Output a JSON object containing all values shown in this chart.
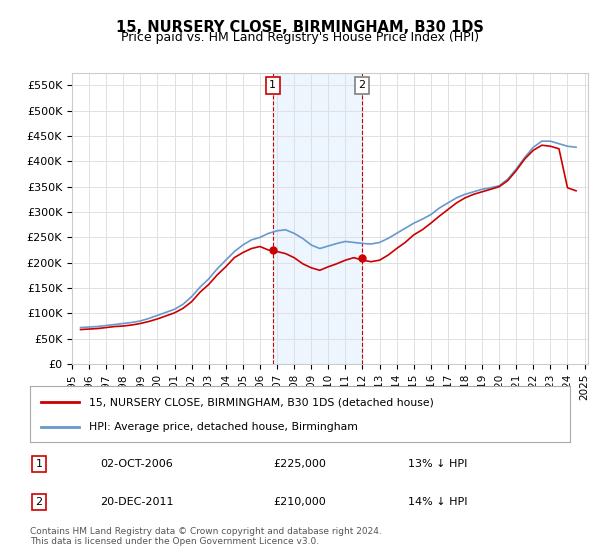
{
  "title": "15, NURSERY CLOSE, BIRMINGHAM, B30 1DS",
  "subtitle": "Price paid vs. HM Land Registry's House Price Index (HPI)",
  "xlabel": "",
  "ylabel": "",
  "ylim": [
    0,
    575000
  ],
  "yticks": [
    0,
    50000,
    100000,
    150000,
    200000,
    250000,
    300000,
    350000,
    400000,
    450000,
    500000,
    550000
  ],
  "background_color": "#ffffff",
  "grid_color": "#e0e0e0",
  "hpi_color": "#6699cc",
  "price_color": "#cc0000",
  "transaction1": {
    "date": "2006-10-02",
    "label": "02-OCT-2006",
    "price": 225000,
    "note": "13% ↓ HPI"
  },
  "transaction2": {
    "date": "2011-12-20",
    "label": "20-DEC-2011",
    "price": 210000,
    "note": "14% ↓ HPI"
  },
  "legend_line1": "15, NURSERY CLOSE, BIRMINGHAM, B30 1DS (detached house)",
  "legend_line2": "HPI: Average price, detached house, Birmingham",
  "footer": "Contains HM Land Registry data © Crown copyright and database right 2024.\nThis data is licensed under the Open Government Licence v3.0.",
  "hpi_data_x": [
    1995.5,
    1996.0,
    1996.5,
    1997.0,
    1997.5,
    1998.0,
    1998.5,
    1999.0,
    1999.5,
    2000.0,
    2000.5,
    2001.0,
    2001.5,
    2002.0,
    2002.5,
    2003.0,
    2003.5,
    2004.0,
    2004.5,
    2005.0,
    2005.5,
    2006.0,
    2006.5,
    2007.0,
    2007.5,
    2008.0,
    2008.5,
    2009.0,
    2009.5,
    2010.0,
    2010.5,
    2011.0,
    2011.5,
    2012.0,
    2012.5,
    2013.0,
    2013.5,
    2014.0,
    2014.5,
    2015.0,
    2015.5,
    2016.0,
    2016.5,
    2017.0,
    2017.5,
    2018.0,
    2018.5,
    2019.0,
    2019.5,
    2020.0,
    2020.5,
    2021.0,
    2021.5,
    2022.0,
    2022.5,
    2023.0,
    2023.5,
    2024.0,
    2024.5
  ],
  "hpi_data_y": [
    72000,
    73000,
    74000,
    76000,
    78000,
    80000,
    82000,
    85000,
    90000,
    96000,
    102000,
    108000,
    118000,
    133000,
    152000,
    168000,
    188000,
    205000,
    222000,
    235000,
    245000,
    250000,
    258000,
    263000,
    265000,
    258000,
    248000,
    235000,
    228000,
    233000,
    238000,
    242000,
    240000,
    238000,
    237000,
    240000,
    248000,
    258000,
    268000,
    278000,
    286000,
    295000,
    308000,
    318000,
    328000,
    335000,
    340000,
    345000,
    348000,
    352000,
    365000,
    385000,
    408000,
    428000,
    440000,
    440000,
    435000,
    430000,
    428000
  ],
  "price_data_x": [
    1995.5,
    1996.0,
    1996.5,
    1997.0,
    1997.5,
    1998.0,
    1998.5,
    1999.0,
    1999.5,
    2000.0,
    2000.5,
    2001.0,
    2001.5,
    2002.0,
    2002.5,
    2003.0,
    2003.5,
    2004.0,
    2004.5,
    2005.0,
    2005.5,
    2006.0,
    2006.5,
    2007.0,
    2007.5,
    2008.0,
    2008.5,
    2009.0,
    2009.5,
    2010.0,
    2010.5,
    2011.0,
    2011.5,
    2012.0,
    2012.5,
    2013.0,
    2013.5,
    2014.0,
    2014.5,
    2015.0,
    2015.5,
    2016.0,
    2016.5,
    2017.0,
    2017.5,
    2018.0,
    2018.5,
    2019.0,
    2019.5,
    2020.0,
    2020.5,
    2021.0,
    2021.5,
    2022.0,
    2022.5,
    2023.0,
    2023.5,
    2024.0,
    2024.5
  ],
  "price_data_y": [
    68000,
    69000,
    70000,
    72000,
    74000,
    75000,
    77000,
    80000,
    84000,
    89000,
    95000,
    101000,
    110000,
    123000,
    142000,
    157000,
    176000,
    192000,
    210000,
    220000,
    228000,
    232000,
    225000,
    222000,
    218000,
    210000,
    198000,
    190000,
    185000,
    192000,
    198000,
    205000,
    210000,
    205000,
    202000,
    205000,
    215000,
    228000,
    240000,
    255000,
    265000,
    278000,
    292000,
    305000,
    318000,
    328000,
    335000,
    340000,
    345000,
    350000,
    362000,
    382000,
    405000,
    422000,
    432000,
    430000,
    425000,
    348000,
    342000
  ]
}
